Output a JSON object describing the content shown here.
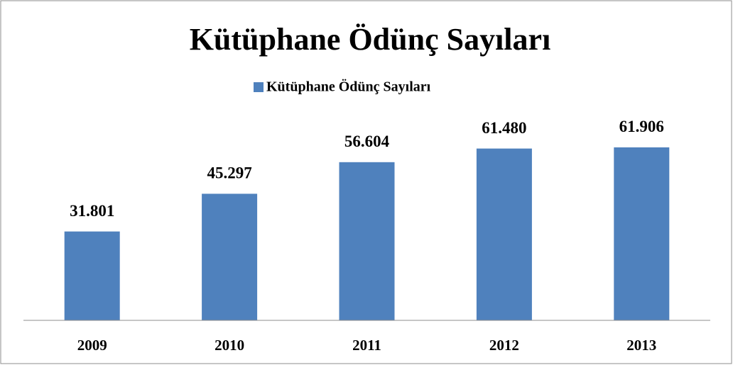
{
  "chart_data": {
    "type": "bar",
    "title": "Kütüphane Ödünç Sayıları",
    "categories": [
      "2009",
      "2010",
      "2011",
      "2012",
      "2013"
    ],
    "series": [
      {
        "name": "Kütüphane Ödünç Sayıları",
        "color": "#4f81bd",
        "values": [
          31801,
          45297,
          56604,
          61480,
          61906
        ],
        "value_labels": [
          "31.801",
          "45.297",
          "56.604",
          "61.480",
          "61.906"
        ]
      }
    ],
    "ylim": [
      0,
      70000
    ],
    "legend": "top",
    "grid": false
  }
}
